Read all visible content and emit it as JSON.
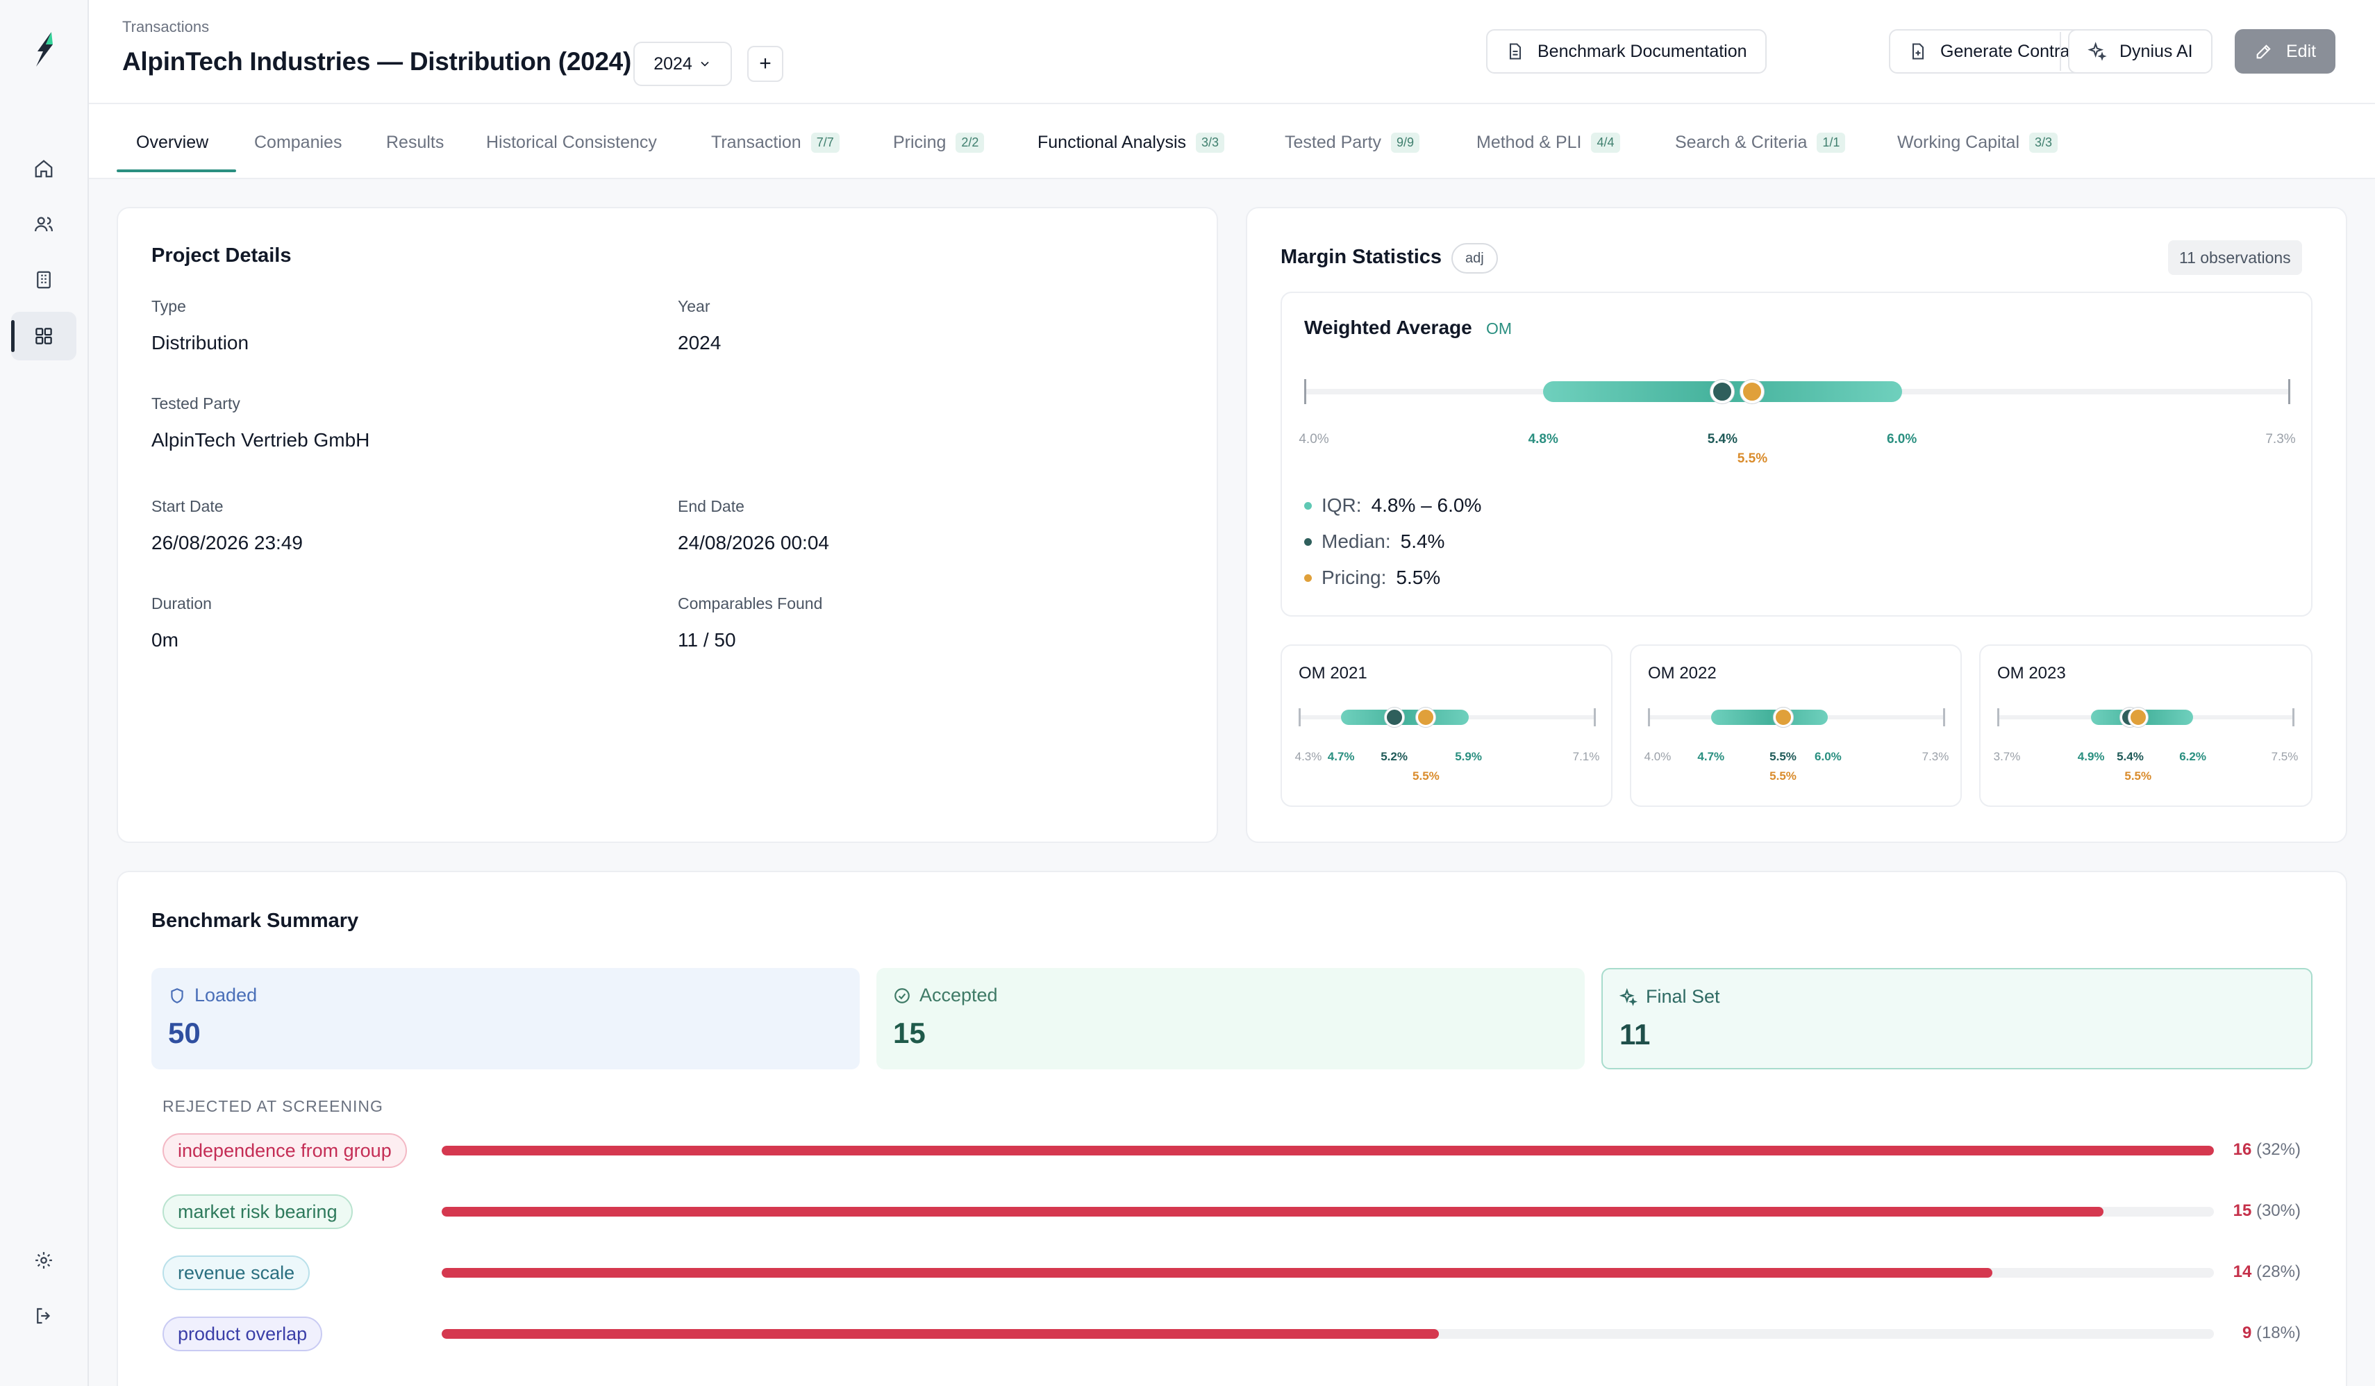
{
  "breadcrumb": "Transactions",
  "title": "AlpinTech Industries — Distribution (2024)",
  "year_select": "2024",
  "add_label": "+",
  "header_buttons": {
    "benchmark_doc": "Benchmark Documentation",
    "generate_contract": "Generate Contract",
    "dynius_ai": "Dynius AI",
    "edit": "Edit"
  },
  "tabs": [
    {
      "label": "Overview",
      "badge": ""
    },
    {
      "label": "Companies",
      "badge": ""
    },
    {
      "label": "Results",
      "badge": ""
    },
    {
      "label": "Historical Consistency",
      "badge": ""
    },
    {
      "label": "Transaction",
      "badge": "7/7"
    },
    {
      "label": "Pricing",
      "badge": "2/2"
    },
    {
      "label": "Functional Analysis",
      "badge": "3/3"
    },
    {
      "label": "Tested Party",
      "badge": "9/9"
    },
    {
      "label": "Method & PLI",
      "badge": "4/4"
    },
    {
      "label": "Search & Criteria",
      "badge": "1/1"
    },
    {
      "label": "Working Capital",
      "badge": "3/3"
    }
  ],
  "project": {
    "title": "Project Details",
    "type_label": "Type",
    "type_value": "Distribution",
    "year_label": "Year",
    "year_value": "2024",
    "tested_label": "Tested Party",
    "tested_value": "AlpinTech Vertrieb GmbH",
    "start_label": "Start Date",
    "start_value": "26/08/2026 23:49",
    "end_label": "End Date",
    "end_value": "24/08/2026 00:04",
    "duration_label": "Duration",
    "duration_value": "0m",
    "comparables_label": "Comparables Found",
    "comparables_value": "11 / 50"
  },
  "margin": {
    "title": "Margin Statistics",
    "adj": "adj",
    "observations": "11 observations",
    "weighted": {
      "title": "Weighted Average",
      "tag": "OM",
      "min": 4.0,
      "max": 7.3,
      "q1": 4.8,
      "q3": 6.0,
      "median": 5.4,
      "pricing": 5.5,
      "min_label": "4.0%",
      "max_label": "7.3%",
      "q1_label": "4.8%",
      "q3_label": "6.0%",
      "median_label": "5.4%",
      "pricing_label": "5.5%",
      "iqr_key": "IQR:",
      "iqr_val": "4.8% – 6.0%",
      "median_key": "Median:",
      "median_val": "5.4%",
      "pricing_key": "Pricing:",
      "pricing_val": "5.5%"
    },
    "mini": [
      {
        "title": "OM 2021",
        "min": 4.3,
        "max": 7.1,
        "q1": 4.7,
        "q3": 5.9,
        "median": 5.2,
        "pricing": 5.5,
        "min_label": "4.3%",
        "max_label": "7.1%",
        "q1_label": "4.7%",
        "q3_label": "5.9%",
        "median_label": "5.2%",
        "pricing_label": "5.5%"
      },
      {
        "title": "OM 2022",
        "min": 4.0,
        "max": 7.3,
        "q1": 4.7,
        "q3": 6.0,
        "median": 5.5,
        "pricing": 5.5,
        "min_label": "4.0%",
        "max_label": "7.3%",
        "q1_label": "4.7%",
        "q3_label": "6.0%",
        "median_label": "5.5%",
        "pricing_label": "5.5%"
      },
      {
        "title": "OM 2023",
        "min": 3.7,
        "max": 7.5,
        "q1": 4.9,
        "q3": 6.2,
        "median": 5.4,
        "pricing": 5.5,
        "min_label": "3.7%",
        "max_label": "7.5%",
        "q1_label": "4.9%",
        "q3_label": "6.2%",
        "median_label": "5.4%",
        "pricing_label": "5.5%"
      }
    ]
  },
  "benchmark": {
    "title": "Benchmark Summary",
    "loaded_label": "Loaded",
    "loaded_value": "50",
    "accepted_label": "Accepted",
    "accepted_value": "15",
    "final_label": "Final Set",
    "final_value": "11",
    "rejected_heading": "REJECTED AT SCREENING",
    "rejections": [
      {
        "label": "independence from group",
        "count": "16",
        "pct": "(32%)",
        "fraction": 1.0,
        "style": "pink"
      },
      {
        "label": "market risk bearing",
        "count": "15",
        "pct": "(30%)",
        "fraction": 0.9375,
        "style": "green"
      },
      {
        "label": "revenue scale",
        "count": "14",
        "pct": "(28%)",
        "fraction": 0.875,
        "style": "teal"
      },
      {
        "label": "product overlap",
        "count": "9",
        "pct": "(18%)",
        "fraction": 0.5625,
        "style": "indigo"
      }
    ]
  },
  "colors": {
    "teal": "#2a8f80",
    "teal_light": "#5fc8b4",
    "median_dot": "#2f5f5c",
    "pricing_dot": "#e0a03a",
    "reject_bar": "#d5384f"
  }
}
